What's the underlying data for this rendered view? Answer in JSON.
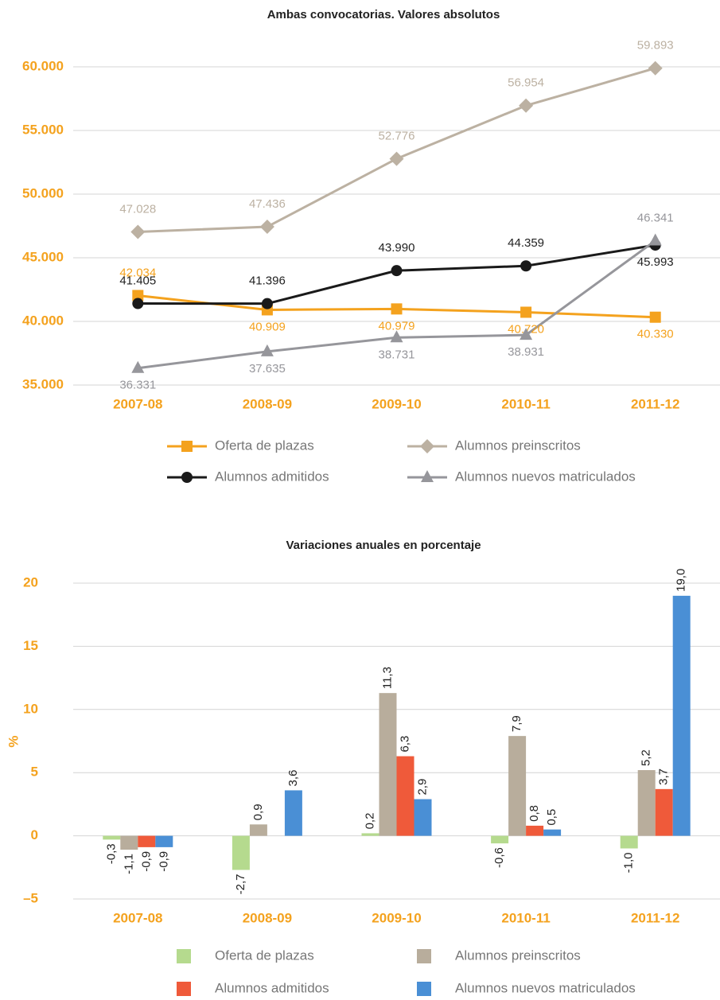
{
  "chart_data": [
    {
      "type": "line",
      "title": "Ambas convocatorias. Valores absolutos",
      "categories": [
        "2007-08",
        "2008-09",
        "2009-10",
        "2010-11",
        "2011-12"
      ],
      "series": [
        {
          "name": "Oferta de plazas",
          "color": "#f4a21e",
          "marker": "square",
          "values": [
            42034,
            40909,
            40979,
            40720,
            40330
          ],
          "value_labels": [
            "42.034",
            "40.909",
            "40.979",
            "40.720",
            "40.330"
          ]
        },
        {
          "name": "Alumnos preinscritos",
          "color": "#bcb1a2",
          "marker": "diamond",
          "values": [
            47028,
            47436,
            52776,
            56954,
            59893
          ],
          "value_labels": [
            "47.028",
            "47.436",
            "52.776",
            "56.954",
            "59.893"
          ]
        },
        {
          "name": "Alumnos admitidos",
          "color": "#1a1a1a",
          "marker": "circle",
          "values": [
            41405,
            41396,
            43990,
            44359,
            45993
          ],
          "value_labels": [
            "41.405",
            "41.396",
            "43.990",
            "44.359",
            "45.993"
          ]
        },
        {
          "name": "Alumnos nuevos matriculados",
          "color": "#96969b",
          "marker": "triangle",
          "values": [
            36331,
            37635,
            38731,
            38931,
            46341
          ],
          "value_labels": [
            "36.331",
            "37.635",
            "38.731",
            "38.931",
            "46.341"
          ]
        }
      ],
      "ylim": [
        35000,
        60000
      ],
      "yticks": [
        {
          "value": 35000,
          "label": "35.000"
        },
        {
          "value": 40000,
          "label": "40.000"
        },
        {
          "value": 45000,
          "label": "45.000"
        },
        {
          "value": 50000,
          "label": "50.000"
        },
        {
          "value": 55000,
          "label": "55.000"
        },
        {
          "value": 60000,
          "label": "60.000"
        }
      ],
      "grid": true
    },
    {
      "type": "bar",
      "title": "Variaciones anuales en porcentaje",
      "y_label": "%",
      "categories": [
        "2007-08",
        "2008-09",
        "2009-10",
        "2010-11",
        "2011-12"
      ],
      "series": [
        {
          "name": "Oferta de plazas",
          "color": "#b5da8e",
          "values": [
            -0.3,
            -2.7,
            0.2,
            -0.6,
            -1.0
          ],
          "value_labels": [
            "-0,3",
            "-2,7",
            "0,2",
            "-0,6",
            "-1,0"
          ]
        },
        {
          "name": "Alumnos preinscritos",
          "color": "#b8ad9c",
          "values": [
            -1.1,
            0.9,
            11.3,
            7.9,
            5.2
          ],
          "value_labels": [
            "-1,1",
            "0,9",
            "11,3",
            "7,9",
            "5,2"
          ]
        },
        {
          "name": "Alumnos admitidos",
          "color": "#ef5a3a",
          "values": [
            -0.9,
            null,
            6.3,
            0.8,
            3.7
          ],
          "value_labels": [
            "-0,9",
            null,
            "6,3",
            "0,8",
            "3,7"
          ]
        },
        {
          "name": "Alumnos nuevos matriculados",
          "color": "#4a8fd5",
          "values": [
            -0.9,
            3.6,
            2.9,
            0.5,
            19.0
          ],
          "value_labels": [
            "-0,9",
            "3,6",
            "2,9",
            "0,5",
            "19,0"
          ]
        }
      ],
      "ylim": [
        -5,
        20
      ],
      "yticks": [
        {
          "value": -5,
          "label": "–5"
        },
        0,
        5,
        10,
        15,
        20
      ],
      "grid": true
    }
  ]
}
